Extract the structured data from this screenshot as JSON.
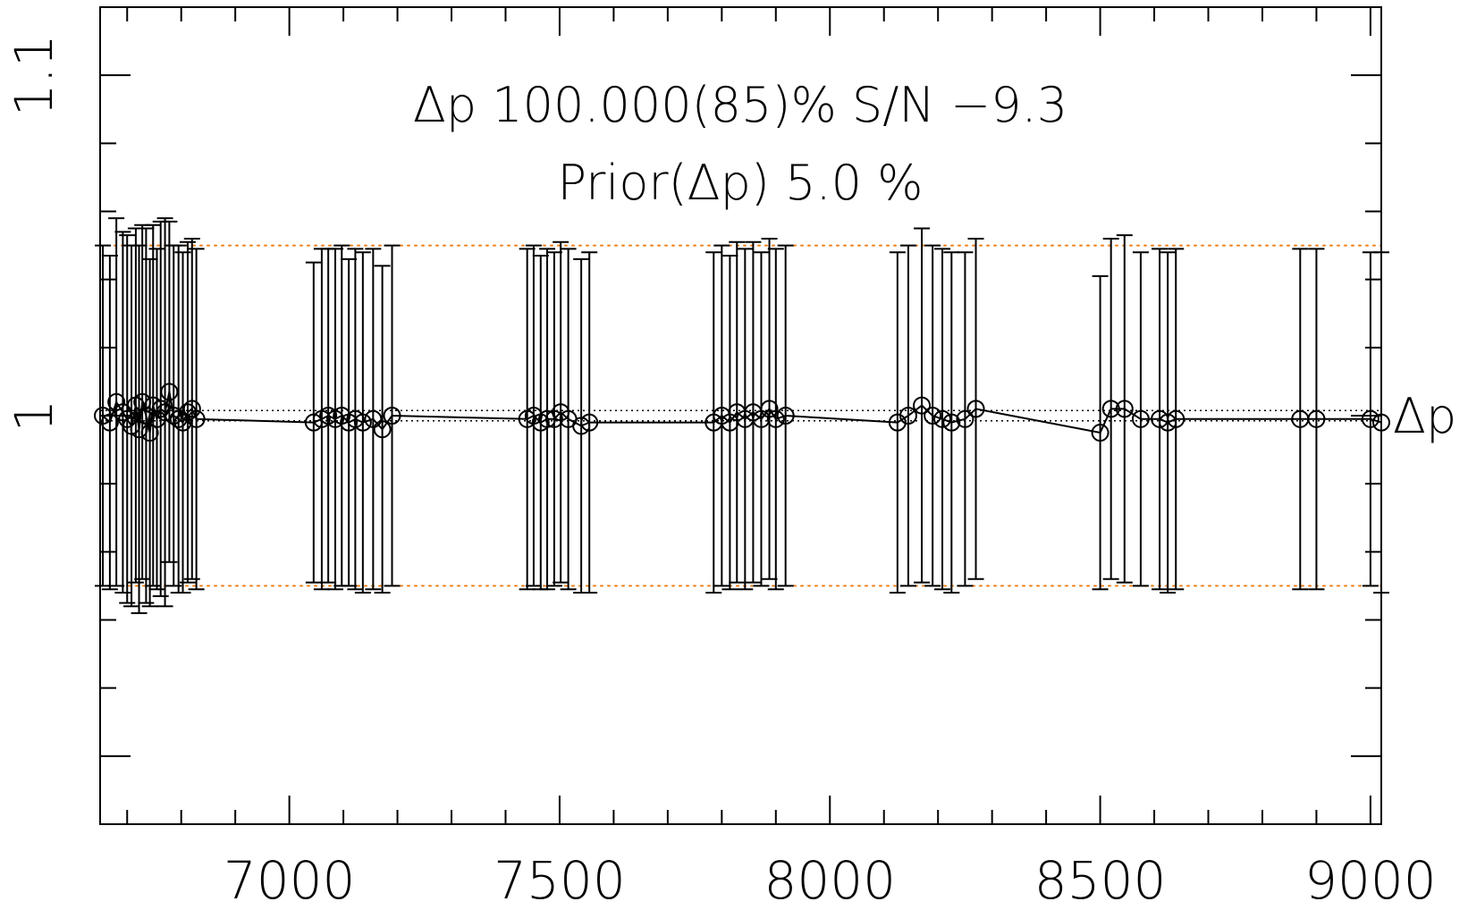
{
  "chart_data": {
    "type": "scatter",
    "title": "Δp 100.000(85)% S/N −9.3",
    "subtitle": "Prior(Δp) 5.0 %",
    "series_label": "Δp",
    "xlim": [
      6650,
      9020
    ],
    "ylim": [
      0.88,
      1.12
    ],
    "x_ticks": [
      7000,
      7500,
      8000,
      8500,
      9000
    ],
    "x_tick_labels": [
      "7000",
      "7500",
      "8000",
      "8500",
      "9000"
    ],
    "y_ticks": [
      1.0,
      1.1
    ],
    "y_tick_labels": [
      "1",
      "1.1"
    ],
    "prior_band": [
      0.95,
      1.05
    ],
    "reference_line": 1.0,
    "colors": {
      "data": "#000000",
      "prior": "#f07f16",
      "axis": "#000000"
    },
    "series": [
      {
        "x": [
          6655,
          6668,
          6680,
          6692,
          6700,
          6708,
          6716,
          6722,
          6728,
          6735,
          6742,
          6748,
          6755,
          6762,
          6770,
          6778,
          6786,
          6795,
          6803,
          6812,
          6820,
          6828,
          7045,
          7060,
          7072,
          7085,
          7097,
          7110,
          7122,
          7136,
          7155,
          7172,
          7190,
          7440,
          7452,
          7465,
          7477,
          7490,
          7502,
          7516,
          7540,
          7555,
          7785,
          7800,
          7815,
          7828,
          7843,
          7858,
          7873,
          7888,
          7900,
          7918,
          8125,
          8145,
          8170,
          8190,
          8208,
          8225,
          8250,
          8270,
          8500,
          8520,
          8545,
          8575,
          8610,
          8625,
          8640,
          8870,
          8900,
          9000,
          9020
        ],
        "y": [
          1.0,
          0.998,
          1.004,
          1.001,
          0.999,
          0.997,
          1.003,
          0.996,
          1.004,
          1.0,
          0.995,
          1.003,
          0.999,
          1.002,
          1.001,
          1.007,
          1.0,
          0.999,
          0.998,
          1.001,
          1.002,
          0.999,
          0.998,
          0.999,
          1.0,
          0.999,
          1.0,
          0.998,
          0.999,
          0.998,
          0.999,
          0.996,
          1.0,
          0.999,
          1.0,
          0.998,
          0.999,
          0.999,
          1.001,
          0.999,
          0.997,
          0.998,
          0.998,
          1.0,
          0.998,
          1.001,
          0.999,
          1.001,
          0.999,
          1.002,
          0.999,
          1.0,
          0.998,
          1.0,
          1.003,
          1.0,
          0.999,
          0.998,
          0.999,
          1.002,
          0.995,
          1.002,
          1.002,
          0.999,
          0.999,
          0.998,
          0.999,
          0.999,
          0.999,
          0.999,
          0.998
        ],
        "err": [
          0.05,
          0.049,
          0.054,
          0.053,
          0.054,
          0.053,
          0.052,
          0.054,
          0.052,
          0.055,
          0.051,
          0.053,
          0.05,
          0.055,
          0.057,
          0.05,
          0.05,
          0.051,
          0.05,
          0.05,
          0.05,
          0.05,
          0.047,
          0.05,
          0.049,
          0.05,
          0.05,
          0.048,
          0.05,
          0.05,
          0.05,
          0.048,
          0.05,
          0.05,
          0.05,
          0.049,
          0.05,
          0.049,
          0.05,
          0.05,
          0.049,
          0.05,
          0.05,
          0.05,
          0.049,
          0.05,
          0.05,
          0.05,
          0.049,
          0.05,
          0.05,
          0.05,
          0.05,
          0.05,
          0.052,
          0.05,
          0.05,
          0.05,
          0.049,
          0.05,
          0.046,
          0.05,
          0.051,
          0.049,
          0.05,
          0.05,
          0.05,
          0.05,
          0.05,
          0.049,
          0.05
        ]
      }
    ]
  }
}
